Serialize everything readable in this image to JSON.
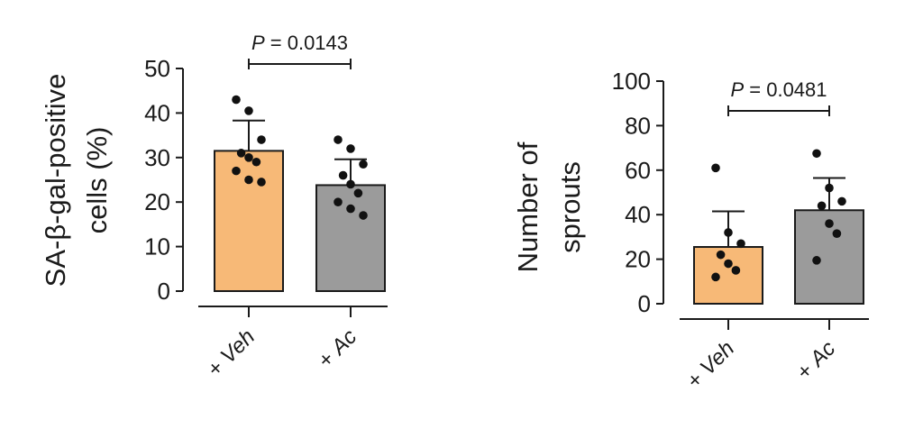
{
  "chart_data": [
    {
      "type": "bar",
      "categories": [
        "+ Veh",
        "+ Ac"
      ],
      "values": [
        31.5,
        23.8
      ],
      "errors": [
        6.8,
        5.8
      ],
      "points": [
        [
          43,
          40.5,
          34,
          31,
          30,
          29,
          27,
          25,
          24.5
        ],
        [
          34,
          32,
          28.5,
          26,
          24,
          22,
          20,
          18.5,
          17
        ]
      ],
      "colors": [
        "#f7b977",
        "#9b9b9b"
      ],
      "ylabel_lines": [
        "SA-β-gal-positive",
        "cells (%)"
      ],
      "ylim": [
        0,
        50
      ],
      "yticks": [
        0,
        10,
        20,
        30,
        40,
        50
      ],
      "pvalue": {
        "prefix": "P",
        "text": " = 0.0143"
      }
    },
    {
      "type": "bar",
      "categories": [
        "+ Veh",
        "+ Ac"
      ],
      "values": [
        25.5,
        42
      ],
      "errors": [
        16,
        14.5
      ],
      "points": [
        [
          61,
          32,
          27,
          22,
          18,
          15,
          12
        ],
        [
          67.5,
          52,
          46,
          44,
          36,
          31.5,
          19.5
        ]
      ],
      "colors": [
        "#f7b977",
        "#9b9b9b"
      ],
      "ylabel_lines": [
        "Number of",
        "sprouts"
      ],
      "ylim": [
        0,
        100
      ],
      "yticks": [
        0,
        20,
        40,
        60,
        80,
        100
      ],
      "pvalue": {
        "prefix": "P",
        "text": " = 0.0481"
      }
    }
  ]
}
